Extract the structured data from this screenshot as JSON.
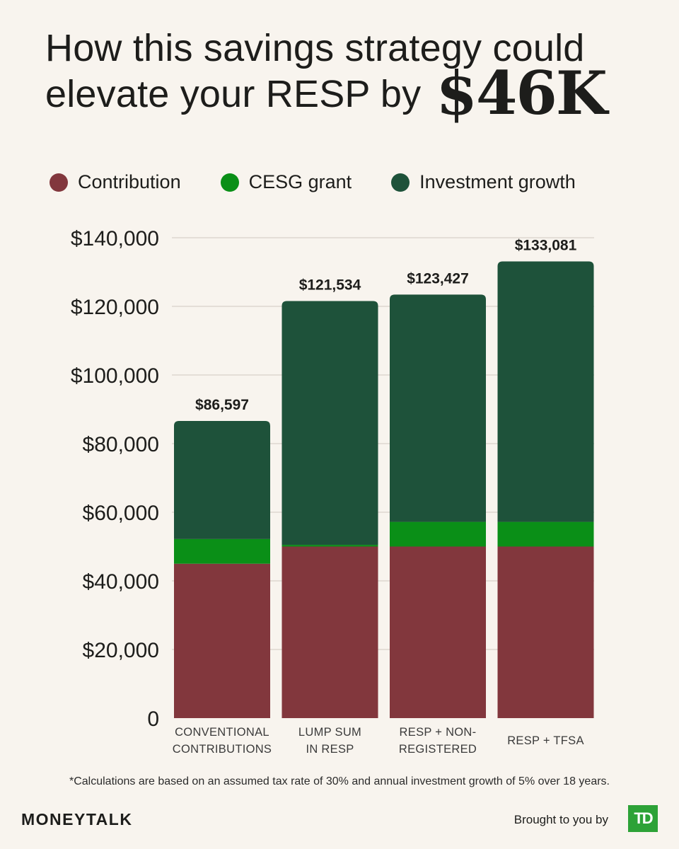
{
  "title": {
    "line1": "How this savings strategy could",
    "line2": "elevate your RESP by",
    "highlight": "$46K"
  },
  "legend": [
    {
      "label": "Contribution",
      "color": "#82373d"
    },
    {
      "label": "CESG grant",
      "color": "#0a8f17"
    },
    {
      "label": "Investment growth",
      "color": "#1e523a"
    }
  ],
  "chart_data": {
    "type": "bar",
    "stacked": true,
    "categories": [
      [
        "CONVENTIONAL",
        "CONTRIBUTIONS"
      ],
      [
        "LUMP SUM",
        "IN RESP"
      ],
      [
        "RESP + NON-",
        "REGISTERED"
      ],
      [
        "RESP + TFSA"
      ]
    ],
    "series": [
      {
        "name": "Contribution",
        "color": "#82373d",
        "values": [
          45000,
          50000,
          50000,
          50000
        ]
      },
      {
        "name": "CESG grant",
        "color": "#0a8f17",
        "values": [
          7200,
          500,
          7200,
          7200
        ]
      },
      {
        "name": "Investment growth",
        "color": "#1e523a",
        "values": [
          34397,
          71034,
          66227,
          75881
        ]
      }
    ],
    "totals": [
      "$86,597",
      "$121,534",
      "$123,427",
      "$133,081"
    ],
    "yticks": [
      0,
      20000,
      40000,
      60000,
      80000,
      100000,
      120000,
      140000
    ],
    "ytick_labels": [
      "0",
      "$20,000",
      "$40,000",
      "$60,000",
      "$80,000",
      "$100,000",
      "$120,000",
      "$140,000"
    ],
    "ylim": [
      0,
      140000
    ],
    "grid": true
  },
  "footnote": "*Calculations are based on an assumed tax rate of 30% and annual investment growth of 5% over 18 years.",
  "footer": {
    "brand": "MONEYTALK",
    "brought_by": "Brought to you by",
    "logo_text": "TD"
  }
}
